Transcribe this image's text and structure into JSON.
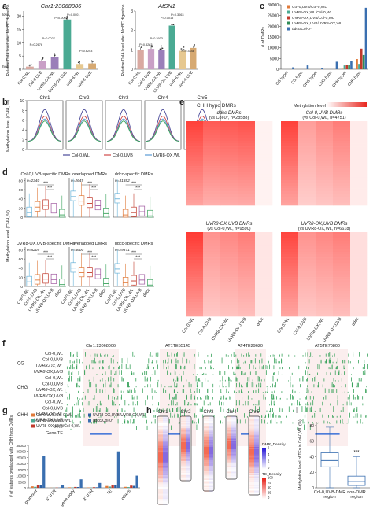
{
  "panels": {
    "a": {
      "letter": "a",
      "charts": [
        {
          "type": "bar",
          "title": "Chr1:23068006",
          "ylabel": "Relative DNA level after McrBC digestion",
          "ylim": [
            0,
            22
          ],
          "yticks": [
            0,
            5,
            10,
            15,
            20
          ],
          "high_label": "high",
          "low_label": "low",
          "categories": [
            "Col-0,WL",
            "Col-0,UVB",
            "UVR8-OX,WL",
            "UVR8-OX,UVB",
            "uvr8-6,WL",
            "uvr8-6,UVB"
          ],
          "values": [
            1.0,
            3.2,
            4.5,
            18.8,
            2.0,
            2.2
          ],
          "colors": [
            "#d9a9a1",
            "#c9a0c6",
            "#9a7fb9",
            "#4aaa93",
            "#e6c890",
            "#d6a972"
          ],
          "pvalues": [
            "P=0.2676",
            "P=0.0027",
            "P=0.0001",
            "P=0.0001",
            "P=0.6203"
          ]
        },
        {
          "type": "bar",
          "title": "AtSN1",
          "ylabel": "Relative DNA level after McrBC digestion",
          "ylim": [
            0,
            3
          ],
          "yticks": [
            0,
            1,
            2,
            3
          ],
          "categories": [
            "Col-0,WL",
            "Col-0,UVB",
            "UVR8-OX,WL",
            "UVR8-OX,UVB",
            "uvr8-6,WL",
            "uvr8-6,UVB"
          ],
          "values": [
            1.0,
            1.05,
            1.0,
            2.25,
            0.95,
            1.1
          ],
          "colors": [
            "#d9a9a1",
            "#c9a0c6",
            "#9a7fb9",
            "#4aaa93",
            "#e6c890",
            "#d6a972"
          ],
          "pvalues": [
            "P=0.8263",
            "P=0.2933",
            "P=0.0015",
            "P=0.3063",
            "P=0.3448"
          ]
        }
      ]
    },
    "b": {
      "letter": "b",
      "ylabel": "Methylation level (CHH, %)",
      "yticks": [
        "0",
        "2",
        "4",
        "6",
        "8",
        "10"
      ],
      "chromosomes": [
        "Chr1",
        "Chr2",
        "Chr3",
        "Chr4",
        "Chr5"
      ],
      "legend": [
        {
          "name": "Col-0,WL",
          "color": "#4a4a9a"
        },
        {
          "name": "Col-0,UVB",
          "color": "#d04a4a"
        },
        {
          "name": "UVR8-OX,WL",
          "color": "#5b9bd5"
        },
        {
          "name": "UVR8-OX,UVB",
          "color": "#3aa35c"
        }
      ]
    },
    "c": {
      "letter": "c",
      "ylabel": "# of DMRs",
      "ylim": [
        0,
        30000
      ],
      "yticks": [
        "0",
        "5000",
        "10000",
        "15000",
        "20000",
        "25000",
        "30000"
      ],
      "categories": [
        "CG hyper",
        "CG hypo",
        "CHG hyper",
        "CHG hypo",
        "CHH hyper",
        "CHH hypo"
      ],
      "series": [
        {
          "name": "Col-0,UVB/Col-0,WL",
          "color": "#e07a3a",
          "values": [
            0,
            0,
            0,
            0,
            200,
            4751
          ]
        },
        {
          "name": "UVR8-OX,WL/Col-0,WL",
          "color": "#4aaa93",
          "values": [
            0,
            0,
            0,
            0,
            1800,
            2500
          ]
        },
        {
          "name": "UVR8-OX,UVB/Col-0,WL",
          "color": "#c0392b",
          "values": [
            0,
            0,
            0,
            0,
            2000,
            9590
          ]
        },
        {
          "name": "UVR8-OX,UVB/UVR8-OX,WL",
          "color": "#2e8b57",
          "values": [
            0,
            0,
            0,
            0,
            2100,
            6618
          ]
        },
        {
          "name": "ddcc/Col-0*",
          "color": "#3a6fb0",
          "values": [
            900,
            1800,
            400,
            3500,
            4000,
            28588
          ]
        }
      ]
    },
    "d": {
      "letter": "d",
      "ylabel": "Methylation level (CHH, %)",
      "yticks": [
        "0",
        "20",
        "40",
        "60",
        "80"
      ],
      "xlabels": [
        "Col-0,WL",
        "Col-0,UVB",
        "UVR8-OX,WL",
        "UVR8-OX,UVB",
        "ddcc"
      ],
      "box_colors": [
        "#6ab3d8",
        "#e07a3a",
        "#c0392b",
        "#a05aa0",
        "#3aa35c"
      ],
      "significance": "***",
      "subplots": [
        {
          "title": "Col-0,UVB-specific DMRs",
          "n": "n=2340",
          "medians": [
            10,
            22,
            26,
            18,
            5
          ]
        },
        {
          "title": "overlapped DMRs",
          "n": "n=2649",
          "medians": [
            45,
            35,
            30,
            25,
            8
          ]
        },
        {
          "title": "ddcc-specific DMRs",
          "n": "n=31382",
          "medians": [
            40,
            5,
            10,
            12,
            3
          ]
        },
        {
          "title": "UVR8-OX,UVB-specific DMRs",
          "n": "n=5209",
          "medians": [
            10,
            14,
            16,
            15,
            4
          ]
        },
        {
          "title": "overlapped DMRs",
          "n": "n=4600",
          "medians": [
            40,
            30,
            30,
            26,
            6
          ]
        },
        {
          "title": "ddcc-specific DMRs",
          "n": "n=29371",
          "medians": [
            38,
            8,
            12,
            14,
            3
          ]
        }
      ]
    },
    "e": {
      "letter": "e",
      "header": "CHH hypo DMRs",
      "legend_label": "Methylation level",
      "legend_ticks": [
        "0",
        "0.2",
        "0.4",
        "0.6",
        "0.8",
        "1.0"
      ],
      "columns": [
        "Col-0,WL",
        "Col-0,UVB",
        "UVR8-OX,WL",
        "UVR8-OX,UVB",
        "ddcc"
      ],
      "heatmaps": [
        {
          "title": "ddcc DMRs",
          "sub": "(vs Col-0*, n=28588)",
          "profile": [
            0.82,
            0.7,
            0.72,
            0.74,
            0.1
          ]
        },
        {
          "title": "Col-0,UVB DMRs",
          "sub": "(vs Col-0,WL, n=4751)",
          "profile": [
            0.82,
            0.4,
            0.48,
            0.55,
            0.15
          ]
        },
        {
          "title": "UVR8-OX,UVB DMRs",
          "sub": "(vs Col-0,WL, n=9590)",
          "profile": [
            0.85,
            0.45,
            0.5,
            0.55,
            0.2
          ]
        },
        {
          "title": "UVR8-OX,UVB DMRs",
          "sub": "(vs UVR8-OX,WL, n=6618)",
          "profile": [
            0.8,
            0.45,
            0.5,
            0.55,
            0.25
          ]
        }
      ]
    },
    "f": {
      "letter": "f",
      "loci": [
        "Chr1:23068006",
        "AT1TE55145",
        "AT4TE29620",
        "AT5TE70800"
      ],
      "contexts": [
        "CG",
        "CHG",
        "CHH"
      ],
      "tracks": [
        "Col-0,WL",
        "Col-0,UVB",
        "UVR8-OX,WL",
        "UVR8-OX,UVB",
        "ddcc"
      ],
      "gene_label": "Gene/TE",
      "colors": {
        "CG": "#3aa35c",
        "CHG": "#3aa35c",
        "CHH": "#3aa35c",
        "gene": "#3a6fd8"
      }
    },
    "g": {
      "letter": "g",
      "ylabel": "# of features overlapped with CHH hypo DMRs",
      "ylim": [
        0,
        35000
      ],
      "yticks": [
        "0",
        "5000",
        "10000",
        "15000",
        "20000",
        "25000",
        "30000",
        "35000"
      ],
      "categories": [
        "promoter",
        "5' UTR",
        "gene body",
        "3' UTR",
        "TE",
        "others"
      ],
      "series": [
        {
          "name": "Col-0,UVB/Col-0,WL",
          "color": "#e07a3a",
          "values": [
            1200,
            100,
            400,
            300,
            1500,
            800
          ]
        },
        {
          "name": "UVR8-OX/Col-0,WL",
          "color": "#4aaa93",
          "values": [
            800,
            80,
            300,
            200,
            1000,
            600
          ]
        },
        {
          "name": "UVR8-OX,UVB/Col-0,WL",
          "color": "#c0392b",
          "values": [
            2200,
            200,
            700,
            500,
            2600,
            1800
          ]
        },
        {
          "name": "UVR8-OX,UVB/UVR8-OX,WL",
          "color": "#2e5fa0",
          "values": [
            2000,
            180,
            650,
            450,
            2400,
            1600
          ]
        },
        {
          "name": "ddcc/Col-0*",
          "color": "#3a6fb0",
          "values": [
            26000,
            2000,
            7000,
            4000,
            30000,
            10000
          ]
        }
      ]
    },
    "h": {
      "letter": "h",
      "chromosomes": [
        "Chr1",
        "Chr2",
        "Chr3",
        "Chr4",
        "Chr5"
      ],
      "dmr_legend": "DMR_Density",
      "te_legend": "TE_Density",
      "dmr_ticks": [
        "0",
        "2",
        "4",
        "6"
      ],
      "te_ticks": [
        "0",
        "25",
        "50",
        "75",
        "100"
      ]
    },
    "i": {
      "letter": "i",
      "ylabel": "Methylation level of TEs in Col-0,WL (%)",
      "yticks": [
        "0",
        "20",
        "40",
        "60",
        "80"
      ],
      "categories": [
        "Col-0,UVB-DMR region",
        "non-DMR region"
      ],
      "boxes": [
        {
          "min": 0,
          "q1": 27,
          "median": 35,
          "q3": 45,
          "max": 78
        },
        {
          "min": 0,
          "q1": 3,
          "median": 8,
          "q3": 15,
          "max": 40
        }
      ],
      "significance": "***"
    }
  }
}
